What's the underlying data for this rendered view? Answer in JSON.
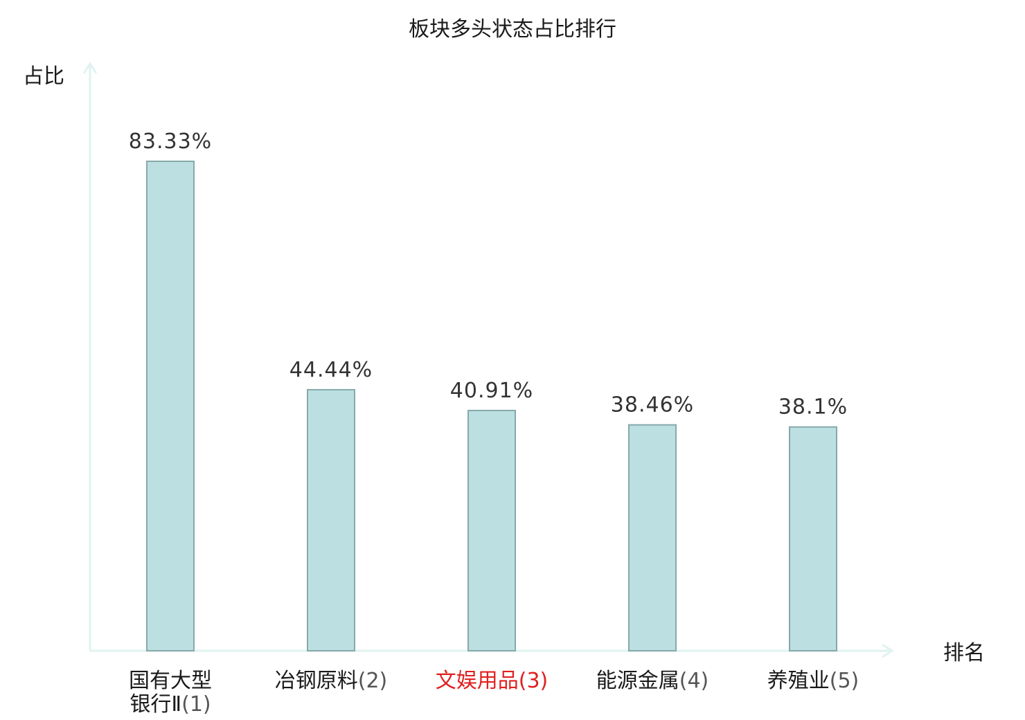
{
  "chart_data": {
    "type": "bar",
    "title": "板块多头状态占比排行",
    "ylabel": "占比",
    "xlabel": "排名",
    "ylim": [
      0,
      100
    ],
    "grid": false,
    "colors": {
      "bar_fill": "#bce0e2",
      "bar_stroke": "#86a9aa",
      "axis": "#dff3f1",
      "highlight_text": "#e02020"
    },
    "categories": [
      {
        "name_lines": [
          "国有大型",
          "银行Ⅱ"
        ],
        "rank": "(1)",
        "highlight": false
      },
      {
        "name_lines": [
          "冶钢原料"
        ],
        "rank": "(2)",
        "highlight": false
      },
      {
        "name_lines": [
          "文娱用品"
        ],
        "rank": "(3)",
        "highlight": true
      },
      {
        "name_lines": [
          "能源金属"
        ],
        "rank": "(4)",
        "highlight": false
      },
      {
        "name_lines": [
          "养殖业"
        ],
        "rank": "(5)",
        "highlight": false
      }
    ],
    "values": [
      83.33,
      44.44,
      40.91,
      38.46,
      38.1
    ],
    "value_labels": [
      "83.33%",
      "44.44%",
      "40.91%",
      "38.46%",
      "38.1%"
    ]
  }
}
